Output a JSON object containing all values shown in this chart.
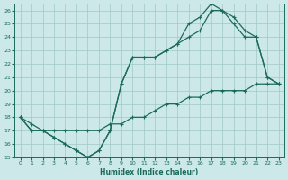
{
  "xlabel": "Humidex (Indice chaleur)",
  "bg_color": "#cce8e8",
  "grid_color": "#a0c8c8",
  "line_color": "#1a6b5a",
  "xlim": [
    -0.5,
    23.5
  ],
  "ylim": [
    15,
    26.5
  ],
  "xticks": [
    0,
    1,
    2,
    3,
    4,
    5,
    6,
    7,
    8,
    9,
    10,
    11,
    12,
    13,
    14,
    15,
    16,
    17,
    18,
    19,
    20,
    21,
    22,
    23
  ],
  "yticks": [
    15,
    16,
    17,
    18,
    19,
    20,
    21,
    22,
    23,
    24,
    25,
    26
  ],
  "line1_x": [
    0,
    1,
    2,
    3,
    4,
    5,
    6,
    7,
    8,
    9,
    10,
    11,
    12,
    13,
    14,
    15,
    16,
    17,
    18,
    19,
    20,
    21,
    22,
    23
  ],
  "line1_y": [
    18,
    17.5,
    17,
    17,
    17,
    17,
    17,
    17,
    17.5,
    17.5,
    18,
    18,
    18.5,
    19,
    19,
    19.5,
    19.5,
    20,
    20,
    20,
    20,
    20.5,
    20.5,
    20.5
  ],
  "line2_x": [
    0,
    1,
    2,
    3,
    4,
    5,
    6,
    7,
    8,
    9,
    10,
    11,
    12,
    13,
    14,
    15,
    16,
    17,
    18,
    19,
    20,
    21,
    22,
    23
  ],
  "line2_y": [
    18,
    17,
    17,
    16.5,
    16,
    15.5,
    15,
    15.5,
    17,
    20.5,
    22.5,
    22.5,
    22.5,
    23,
    23.5,
    24,
    24.5,
    26,
    26,
    25,
    24,
    24,
    21,
    20.5
  ],
  "line3_x": [
    0,
    1,
    2,
    3,
    4,
    5,
    6,
    7,
    8,
    9,
    10,
    11,
    12,
    13,
    14,
    15,
    16,
    17,
    18,
    19,
    20,
    21,
    22,
    23
  ],
  "line3_y": [
    18,
    17,
    17,
    16.5,
    16,
    15.5,
    15,
    15.5,
    17,
    20.5,
    22.5,
    22.5,
    22.5,
    23,
    23.5,
    25,
    25.5,
    26.5,
    26,
    25.5,
    24.5,
    24,
    21,
    20.5
  ]
}
